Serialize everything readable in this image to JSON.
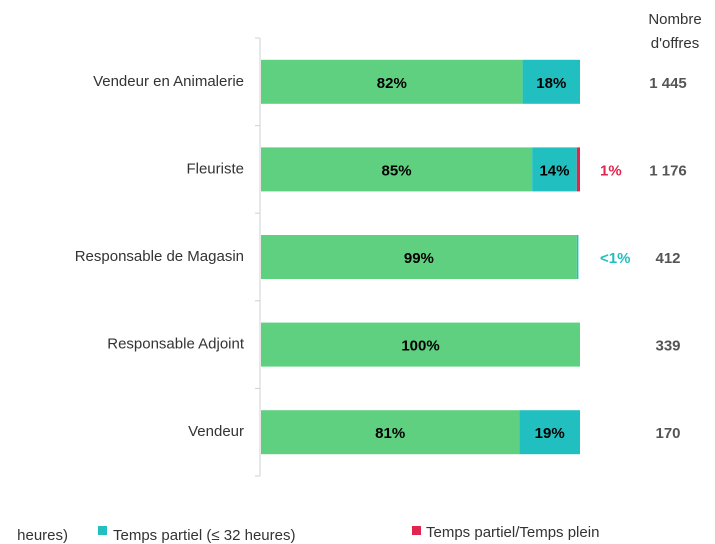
{
  "chart_data": {
    "type": "stacked-barh",
    "categories": [
      "Vendeur en Animalerie",
      "Fleuriste",
      "Responsable de Magasin",
      "Responsable Adjoint",
      "Vendeur"
    ],
    "series": [
      {
        "name": "heures)",
        "color": "#5fd07f",
        "values": [
          82,
          85,
          99,
          100,
          81
        ],
        "value_labels": [
          "82%",
          "85%",
          "99%",
          "100%",
          "81%"
        ]
      },
      {
        "name": "Temps partiel (≤ 32 heures)",
        "color": "#21bfbf",
        "values": [
          18,
          14,
          0.5,
          null,
          19
        ],
        "value_labels": [
          "18%",
          "14%",
          "<1%",
          null,
          "19%"
        ]
      },
      {
        "name": "Temps partiel/Temps plein",
        "color": "#e0254e",
        "values": [
          null,
          1,
          null,
          null,
          null
        ],
        "value_labels": [
          null,
          "1%",
          null,
          null,
          null
        ]
      }
    ],
    "xlim": [
      0,
      100
    ],
    "offers": {
      "header": [
        "Nombre",
        "d'offres"
      ],
      "values": [
        1445,
        1176,
        412,
        339,
        170
      ],
      "value_labels": [
        "1 445",
        "1 176",
        "412",
        "339",
        "170"
      ]
    }
  }
}
